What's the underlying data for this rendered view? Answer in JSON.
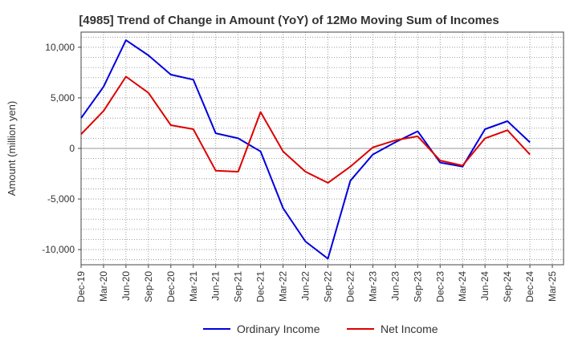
{
  "chart_data": {
    "type": "line",
    "title": "[4985]  Trend of Change in Amount (YoY) of 12Mo Moving Sum of Incomes",
    "xlabel": "",
    "ylabel": "Amount (million yen)",
    "ylim": [
      -11500,
      11500
    ],
    "yticks": [
      10000,
      5000,
      0,
      -5000,
      -10000
    ],
    "ytick_labels": [
      "10,000",
      "5,000",
      "0",
      "-5,000",
      "-10,000"
    ],
    "categories": [
      "Dec-19",
      "Mar-20",
      "Jun-20",
      "Sep-20",
      "Dec-20",
      "Mar-21",
      "Jun-21",
      "Sep-21",
      "Dec-21",
      "Mar-22",
      "Jun-22",
      "Sep-22",
      "Dec-22",
      "Mar-23",
      "Jun-23",
      "Sep-23",
      "Dec-23",
      "Mar-24",
      "Jun-24",
      "Sep-24",
      "Dec-24",
      "Mar-25"
    ],
    "grid": true,
    "legend_position": "bottom",
    "series": [
      {
        "name": "Ordinary Income",
        "color": "#0000dd",
        "values": [
          3000,
          6100,
          10700,
          9200,
          7300,
          6800,
          1500,
          1000,
          -300,
          -5900,
          -9200,
          -10900,
          -3200,
          -600,
          600,
          1700,
          -1400,
          -1800,
          1900,
          2700,
          600,
          null
        ]
      },
      {
        "name": "Net Income",
        "color": "#dd0000",
        "values": [
          1400,
          3700,
          7100,
          5500,
          2300,
          1900,
          -2200,
          -2300,
          3600,
          -300,
          -2300,
          -3400,
          -1800,
          100,
          800,
          1200,
          -1200,
          -1700,
          1000,
          1800,
          -600,
          null
        ]
      }
    ]
  }
}
